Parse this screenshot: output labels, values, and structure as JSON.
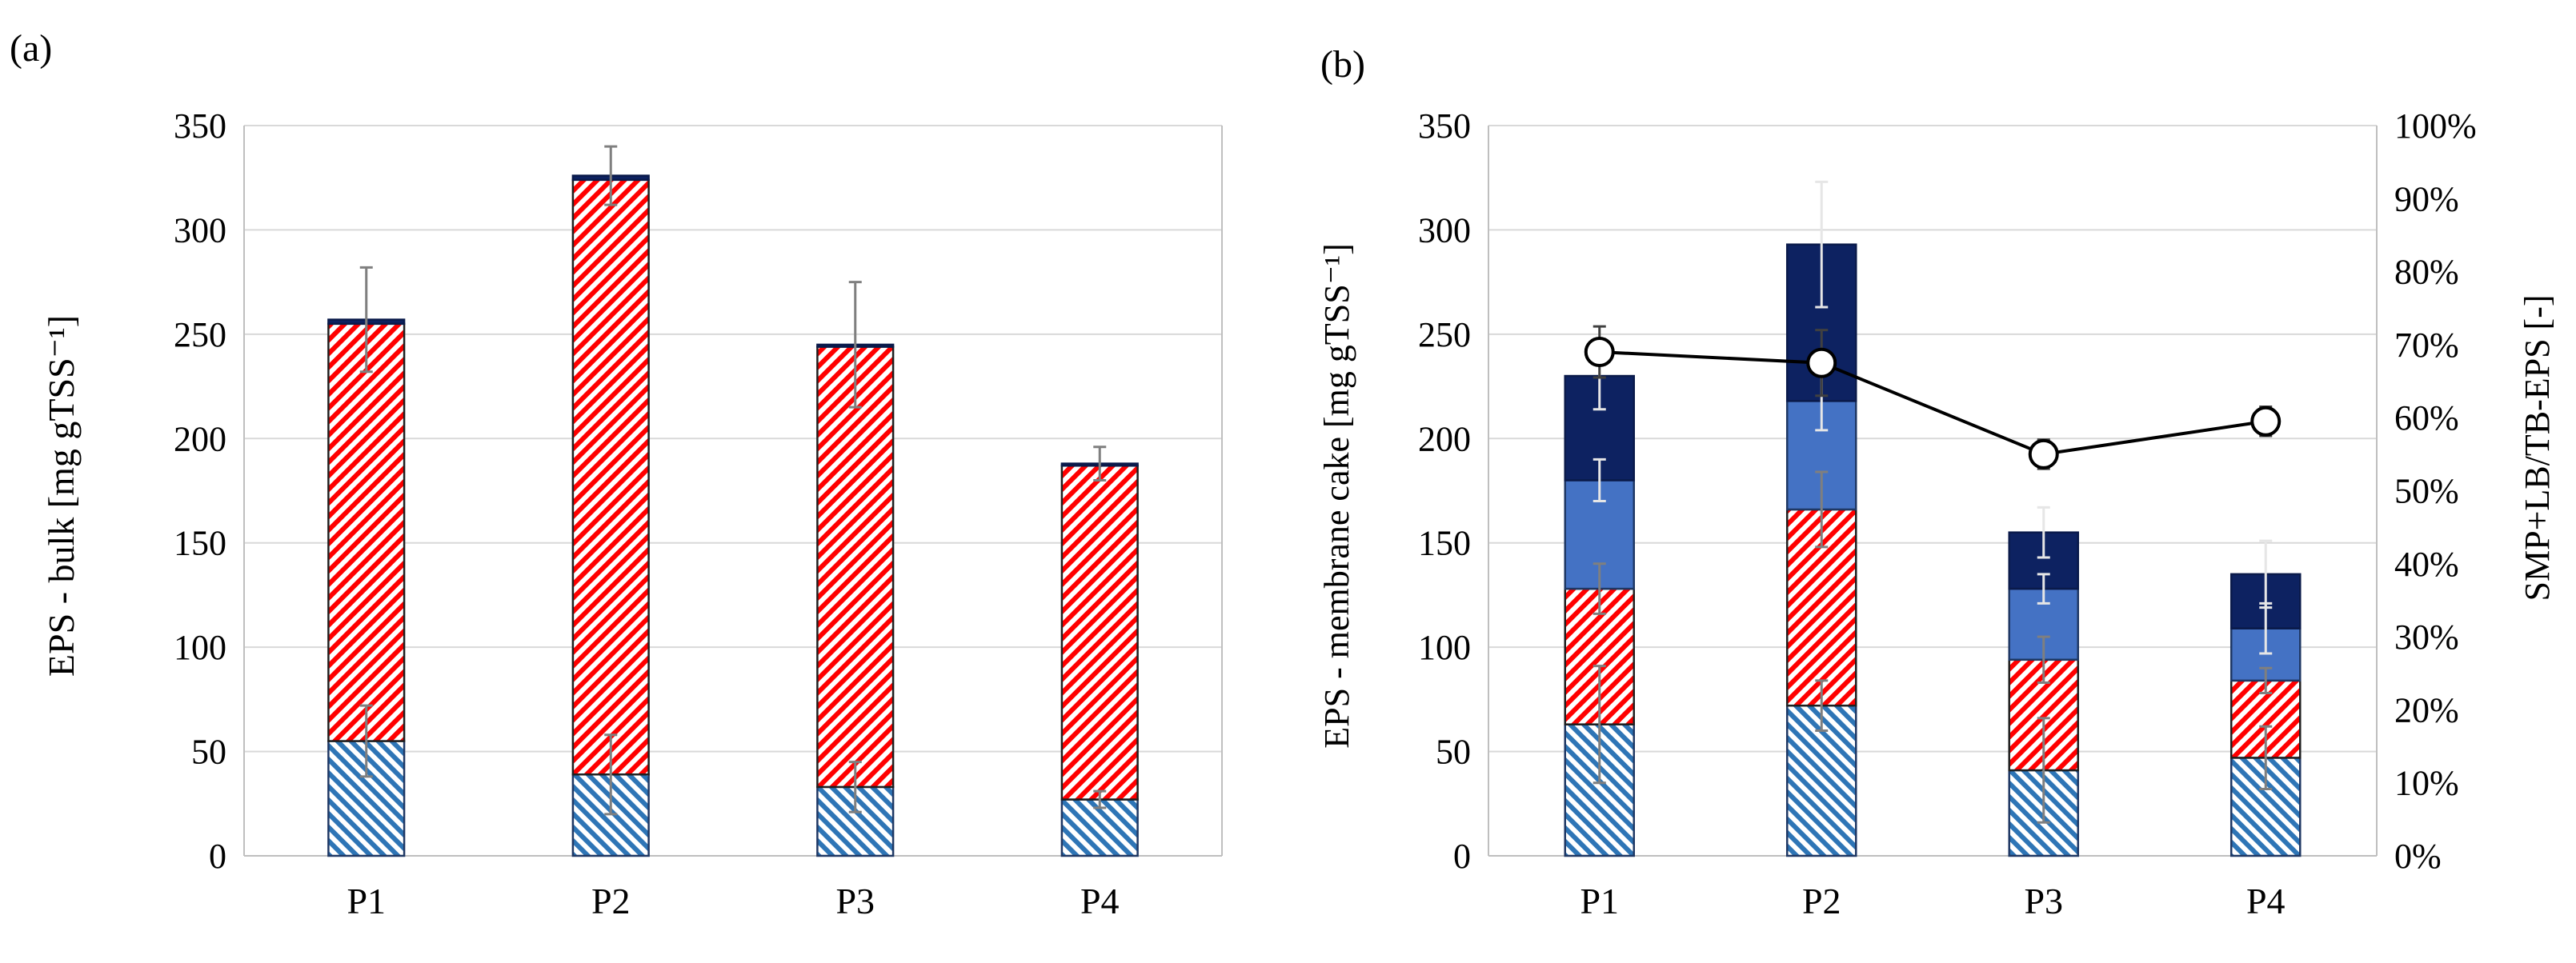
{
  "chart_data": [
    {
      "panel_label": "(a)",
      "type": "bar",
      "stacked": true,
      "categories": [
        "P1",
        "P2",
        "P3",
        "P4"
      ],
      "ylabel": "EPS - bulk [mg gTSS⁻¹]",
      "ylim": [
        0,
        350
      ],
      "yticks": [
        "0",
        "50",
        "100",
        "150",
        "200",
        "250",
        "300",
        "350"
      ],
      "grid": true,
      "series": [
        {
          "name": "Blue hatched",
          "pattern": "blue-hatch",
          "values": [
            55,
            39,
            33,
            27
          ],
          "errors": [
            17,
            19,
            12,
            4
          ]
        },
        {
          "name": "Red hatched",
          "pattern": "red-hatch",
          "values": [
            200,
            285,
            211,
            160
          ],
          "errors": [
            0,
            0,
            0,
            0
          ]
        },
        {
          "name": "Light blue",
          "pattern": "solid-light",
          "values": [
            0,
            0,
            0,
            0
          ],
          "errors": [
            0,
            0,
            0,
            0
          ]
        },
        {
          "name": "Dark navy",
          "pattern": "solid-dark",
          "values": [
            2,
            2,
            1,
            1
          ],
          "errors": [
            25,
            14,
            30,
            8
          ]
        }
      ]
    },
    {
      "panel_label": "(b)",
      "type": "bar",
      "stacked": true,
      "categories": [
        "P1",
        "P2",
        "P3",
        "P4"
      ],
      "ylabel": "EPS - membrane cake [mg gTSS⁻¹]",
      "ylim": [
        0,
        350
      ],
      "yticks": [
        "0",
        "50",
        "100",
        "150",
        "200",
        "250",
        "300",
        "350"
      ],
      "y2label": "SMP+LB/TB-EPS [-]",
      "y2lim": [
        0,
        100
      ],
      "y2ticks": [
        "0%",
        "10%",
        "20%",
        "30%",
        "40%",
        "50%",
        "60%",
        "70%",
        "80%",
        "90%",
        "100%"
      ],
      "grid": true,
      "series": [
        {
          "name": "Blue hatched",
          "pattern": "blue-hatch",
          "values": [
            63,
            72,
            41,
            47
          ],
          "errors": [
            28,
            12,
            25,
            15
          ]
        },
        {
          "name": "Red hatched",
          "pattern": "red-hatch",
          "values": [
            65,
            94,
            53,
            37
          ],
          "errors": [
            12,
            18,
            11,
            6
          ]
        },
        {
          "name": "Light blue",
          "pattern": "solid-light",
          "values": [
            52,
            52,
            34,
            25
          ],
          "errors": [
            10,
            14,
            7,
            12
          ]
        },
        {
          "name": "Dark navy",
          "pattern": "solid-dark",
          "values": [
            50,
            75,
            27,
            26
          ],
          "errors": [
            16,
            30,
            12,
            16
          ]
        }
      ],
      "line": {
        "name": "SMP+LB/TB-EPS",
        "axis": "right",
        "values": [
          69,
          67.5,
          55,
          59.5
        ],
        "errors": [
          3.5,
          4.5,
          2,
          2
        ]
      }
    }
  ],
  "colors": {
    "blue_hatch": "#2e75b6",
    "red_hatch": "#ff0000",
    "light_blue": "#4472c4",
    "dark_navy": "#0d2261",
    "grid": "#d9d9d9",
    "axis": "#bfbfbf",
    "error_bar": "#7f7f7f",
    "line": "#000000"
  }
}
